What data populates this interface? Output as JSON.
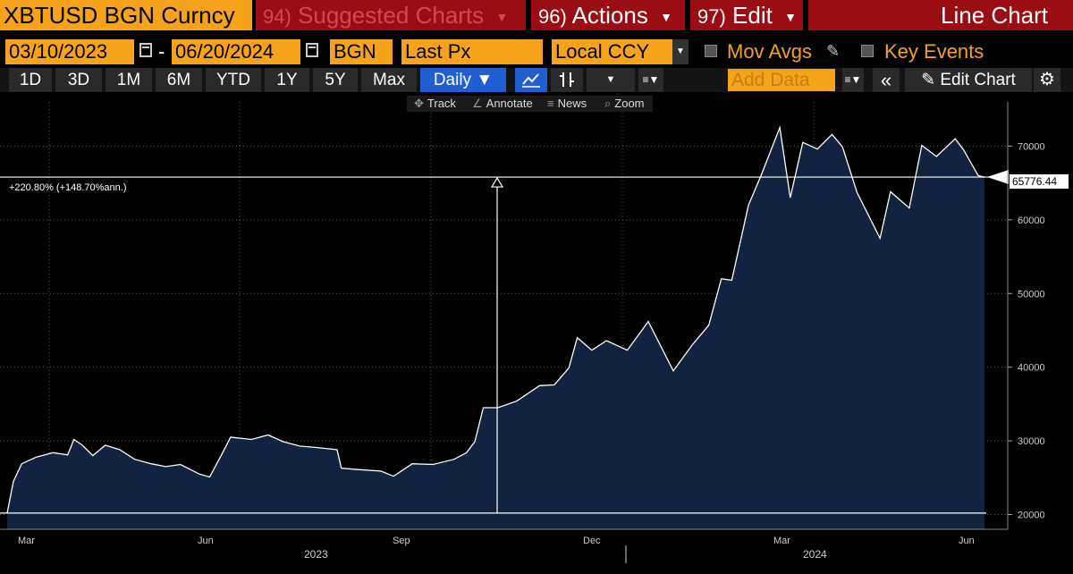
{
  "header": {
    "ticker": "XBTUSD BGN Curncy",
    "suggested_num": "94)",
    "suggested_label": "Suggested Charts",
    "actions_num": "96)",
    "actions_label": "Actions",
    "edit_num": "97)",
    "edit_label": "Edit",
    "chart_type": "Line Chart"
  },
  "controls": {
    "start_date": "03/10/2023",
    "end_date": "06/20/2024",
    "source": "BGN",
    "field": "Last Px",
    "currency": "Local CCY",
    "mov_avgs_label": "Mov Avgs",
    "key_events_label": "Key Events"
  },
  "toolbar": {
    "ranges": [
      "1D",
      "3D",
      "1M",
      "6M",
      "YTD",
      "1Y",
      "5Y",
      "Max"
    ],
    "frequency": "Daily",
    "add_data_placeholder": "Add Data",
    "edit_chart": "Edit Chart"
  },
  "subtoolbar": {
    "track": "Track",
    "annotate": "Annotate",
    "news": "News",
    "zoom": "Zoom"
  },
  "colors": {
    "orange": "#f7a21b",
    "red": "#9a0d12",
    "blue": "#1f5fd1",
    "fill": "#13223f",
    "line": "#ffffff"
  },
  "chart_data": {
    "type": "area",
    "series": [
      {
        "x": [
          "2023-03-10",
          "2023-03-13",
          "2023-03-17",
          "2023-03-24",
          "2023-04-01",
          "2023-04-08",
          "2023-04-11",
          "2023-04-15",
          "2023-04-20",
          "2023-04-26",
          "2023-05-03",
          "2023-05-10",
          "2023-05-18",
          "2023-05-25",
          "2023-06-01",
          "2023-06-10",
          "2023-06-15",
          "2023-06-21",
          "2023-06-25",
          "2023-07-05",
          "2023-07-13",
          "2023-07-20",
          "2023-07-28",
          "2023-08-05",
          "2023-08-15",
          "2023-08-17",
          "2023-08-25",
          "2023-09-05",
          "2023-09-11",
          "2023-09-20",
          "2023-09-30",
          "2023-10-10",
          "2023-10-16",
          "2023-10-20",
          "2023-10-24",
          "2023-10-31",
          "2023-11-09",
          "2023-11-20",
          "2023-11-27",
          "2023-12-04",
          "2023-12-08",
          "2023-12-15",
          "2023-12-22",
          "2024-01-01",
          "2024-01-11",
          "2024-01-23",
          "2024-02-01",
          "2024-02-09",
          "2024-02-15",
          "2024-02-20",
          "2024-02-28",
          "2024-03-05",
          "2024-03-14",
          "2024-03-19",
          "2024-03-25",
          "2024-04-01",
          "2024-04-08",
          "2024-04-13",
          "2024-04-20",
          "2024-05-01",
          "2024-05-06",
          "2024-05-15",
          "2024-05-21",
          "2024-05-28",
          "2024-06-06",
          "2024-06-10",
          "2024-06-17",
          "2024-06-20"
        ],
        "y": [
          20200,
          24500,
          26900,
          27800,
          28400,
          28100,
          30200,
          29400,
          28000,
          29400,
          28800,
          27500,
          26900,
          26500,
          26800,
          25500,
          25100,
          28300,
          30500,
          30200,
          30800,
          29900,
          29300,
          29100,
          28800,
          26300,
          26100,
          25900,
          25200,
          26900,
          26800,
          27500,
          28400,
          29900,
          34500,
          34500,
          35400,
          37500,
          37600,
          39900,
          44000,
          42300,
          43600,
          42300,
          46200,
          39500,
          43000,
          45700,
          52000,
          51800,
          62000,
          66000,
          72500,
          63000,
          70500,
          69600,
          71600,
          69900,
          63700,
          57500,
          63800,
          61600,
          70100,
          68600,
          71000,
          69500,
          66000,
          65800
        ]
      }
    ],
    "x_ticks": [
      "Mar",
      "Jun",
      "Sep",
      "Dec",
      "Mar",
      "Jun"
    ],
    "year_labels": [
      "2023",
      "2024"
    ],
    "y_ticks": [
      20000,
      30000,
      40000,
      50000,
      60000,
      70000
    ],
    "ylim": [
      18000,
      76000
    ],
    "last_value_label": "65776.44",
    "annotation": "+220.80% (+148.70%ann.)",
    "grid": true
  }
}
